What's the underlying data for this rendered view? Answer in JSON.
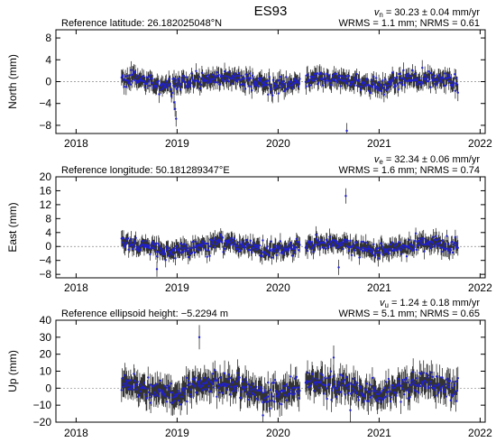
{
  "chart_data": {
    "type": "scatter",
    "title": "ES93",
    "x_ticks": [
      2018,
      2019,
      2020,
      2021,
      2022
    ],
    "xlim": [
      2017.8,
      2022.05
    ],
    "data_span": [
      2018.45,
      2021.78
    ],
    "gap": [
      2020.22,
      2020.27
    ],
    "colors": {
      "points": "#1f1fd0",
      "errorbars": "#333333",
      "zero_line": "#888888"
    },
    "panels": [
      {
        "ylabel": "North (mm)",
        "ylim": [
          -9.5,
          9.5
        ],
        "yticks": [
          -8,
          -4,
          0,
          4,
          8
        ],
        "ref_text": "Reference latitude: 26.182025048°N",
        "velocity_symbol": "v",
        "velocity_sub": "n",
        "velocity_text": " = 30.23 ± 0.04 mm/yr",
        "stats_text": "WRMS = 1.1 mm; NRMS = 0.61",
        "noise_sd": 0.7,
        "err": 1.3,
        "seasonal_amp": 0.6,
        "outliers": [
          {
            "x": 2018.98,
            "y": -5.0
          },
          {
            "x": 2018.99,
            "y": -6.8
          },
          {
            "x": 2018.97,
            "y": -3.8
          },
          {
            "x": 2020.68,
            "y": -9.0
          }
        ]
      },
      {
        "ylabel": "East (mm)",
        "ylim": [
          -9,
          20
        ],
        "yticks": [
          -8,
          -4,
          0,
          4,
          8,
          12,
          16,
          20
        ],
        "ref_text": "Reference longitude: 50.181289347°E",
        "velocity_symbol": "v",
        "velocity_sub": "e",
        "velocity_text": " = 32.34 ± 0.06 mm/yr",
        "stats_text": "WRMS = 1.6 mm; NRMS = 0.74",
        "noise_sd": 1.1,
        "err": 2.0,
        "seasonal_amp": 1.2,
        "outliers": [
          {
            "x": 2020.67,
            "y": 14.5
          },
          {
            "x": 2020.6,
            "y": -6.0
          },
          {
            "x": 2018.8,
            "y": -6.5
          }
        ]
      },
      {
        "ylabel": "Up (mm)",
        "ylim": [
          -20,
          40
        ],
        "yticks": [
          -20,
          -10,
          0,
          10,
          20,
          30,
          40
        ],
        "ref_text": "Reference ellipsoid height: −5.2294 m",
        "velocity_symbol": "v",
        "velocity_sub": "u",
        "velocity_text": " = 1.24 ± 0.18 mm/yr",
        "stats_text": "WRMS = 5.1 mm; NRMS = 0.65",
        "noise_sd": 3.6,
        "err": 6.5,
        "seasonal_amp": 3.0,
        "outliers": [
          {
            "x": 2019.22,
            "y": 30.0
          },
          {
            "x": 2020.55,
            "y": 18.0
          },
          {
            "x": 2019.85,
            "y": -16.0
          }
        ]
      }
    ]
  }
}
